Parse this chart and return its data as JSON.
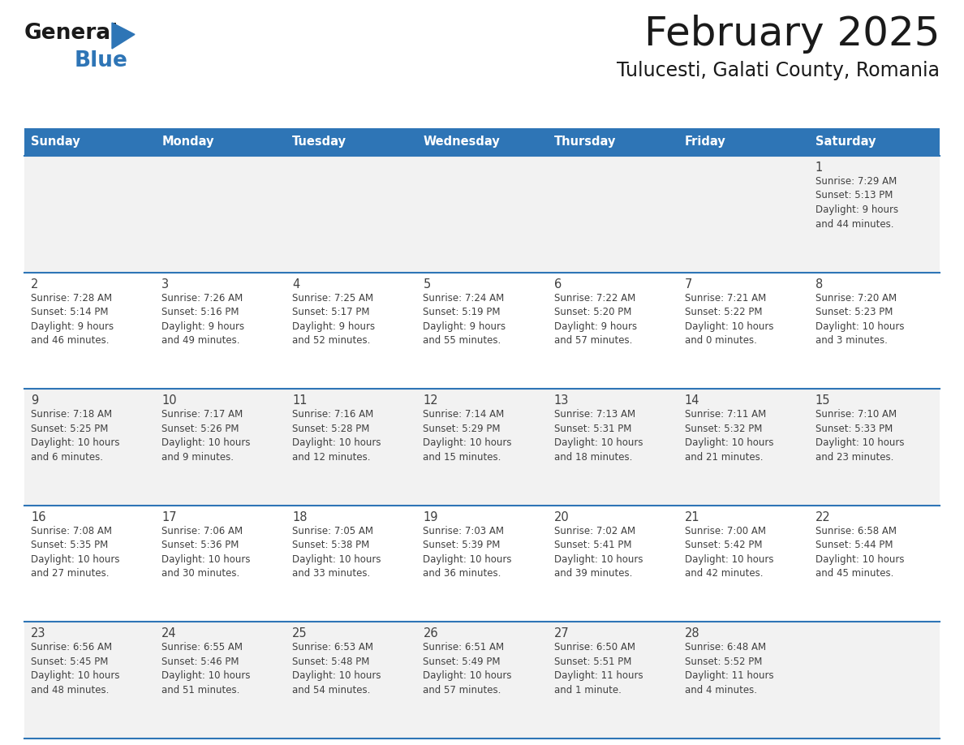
{
  "title": "February 2025",
  "subtitle": "Tulucesti, Galati County, Romania",
  "header_bg": "#2E75B6",
  "header_text_color": "#FFFFFF",
  "days_of_week": [
    "Sunday",
    "Monday",
    "Tuesday",
    "Wednesday",
    "Thursday",
    "Friday",
    "Saturday"
  ],
  "divider_color": "#2E75B6",
  "text_color": "#404040",
  "row_bg": [
    "#F2F2F2",
    "#FFFFFF",
    "#F2F2F2",
    "#FFFFFF",
    "#F2F2F2"
  ],
  "calendar": [
    [
      null,
      null,
      null,
      null,
      null,
      null,
      {
        "day": "1",
        "sunrise": "7:29 AM",
        "sunset": "5:13 PM",
        "daylight1": "Daylight: 9 hours",
        "daylight2": "and 44 minutes."
      }
    ],
    [
      {
        "day": "2",
        "sunrise": "7:28 AM",
        "sunset": "5:14 PM",
        "daylight1": "Daylight: 9 hours",
        "daylight2": "and 46 minutes."
      },
      {
        "day": "3",
        "sunrise": "7:26 AM",
        "sunset": "5:16 PM",
        "daylight1": "Daylight: 9 hours",
        "daylight2": "and 49 minutes."
      },
      {
        "day": "4",
        "sunrise": "7:25 AM",
        "sunset": "5:17 PM",
        "daylight1": "Daylight: 9 hours",
        "daylight2": "and 52 minutes."
      },
      {
        "day": "5",
        "sunrise": "7:24 AM",
        "sunset": "5:19 PM",
        "daylight1": "Daylight: 9 hours",
        "daylight2": "and 55 minutes."
      },
      {
        "day": "6",
        "sunrise": "7:22 AM",
        "sunset": "5:20 PM",
        "daylight1": "Daylight: 9 hours",
        "daylight2": "and 57 minutes."
      },
      {
        "day": "7",
        "sunrise": "7:21 AM",
        "sunset": "5:22 PM",
        "daylight1": "Daylight: 10 hours",
        "daylight2": "and 0 minutes."
      },
      {
        "day": "8",
        "sunrise": "7:20 AM",
        "sunset": "5:23 PM",
        "daylight1": "Daylight: 10 hours",
        "daylight2": "and 3 minutes."
      }
    ],
    [
      {
        "day": "9",
        "sunrise": "7:18 AM",
        "sunset": "5:25 PM",
        "daylight1": "Daylight: 10 hours",
        "daylight2": "and 6 minutes."
      },
      {
        "day": "10",
        "sunrise": "7:17 AM",
        "sunset": "5:26 PM",
        "daylight1": "Daylight: 10 hours",
        "daylight2": "and 9 minutes."
      },
      {
        "day": "11",
        "sunrise": "7:16 AM",
        "sunset": "5:28 PM",
        "daylight1": "Daylight: 10 hours",
        "daylight2": "and 12 minutes."
      },
      {
        "day": "12",
        "sunrise": "7:14 AM",
        "sunset": "5:29 PM",
        "daylight1": "Daylight: 10 hours",
        "daylight2": "and 15 minutes."
      },
      {
        "day": "13",
        "sunrise": "7:13 AM",
        "sunset": "5:31 PM",
        "daylight1": "Daylight: 10 hours",
        "daylight2": "and 18 minutes."
      },
      {
        "day": "14",
        "sunrise": "7:11 AM",
        "sunset": "5:32 PM",
        "daylight1": "Daylight: 10 hours",
        "daylight2": "and 21 minutes."
      },
      {
        "day": "15",
        "sunrise": "7:10 AM",
        "sunset": "5:33 PM",
        "daylight1": "Daylight: 10 hours",
        "daylight2": "and 23 minutes."
      }
    ],
    [
      {
        "day": "16",
        "sunrise": "7:08 AM",
        "sunset": "5:35 PM",
        "daylight1": "Daylight: 10 hours",
        "daylight2": "and 27 minutes."
      },
      {
        "day": "17",
        "sunrise": "7:06 AM",
        "sunset": "5:36 PM",
        "daylight1": "Daylight: 10 hours",
        "daylight2": "and 30 minutes."
      },
      {
        "day": "18",
        "sunrise": "7:05 AM",
        "sunset": "5:38 PM",
        "daylight1": "Daylight: 10 hours",
        "daylight2": "and 33 minutes."
      },
      {
        "day": "19",
        "sunrise": "7:03 AM",
        "sunset": "5:39 PM",
        "daylight1": "Daylight: 10 hours",
        "daylight2": "and 36 minutes."
      },
      {
        "day": "20",
        "sunrise": "7:02 AM",
        "sunset": "5:41 PM",
        "daylight1": "Daylight: 10 hours",
        "daylight2": "and 39 minutes."
      },
      {
        "day": "21",
        "sunrise": "7:00 AM",
        "sunset": "5:42 PM",
        "daylight1": "Daylight: 10 hours",
        "daylight2": "and 42 minutes."
      },
      {
        "day": "22",
        "sunrise": "6:58 AM",
        "sunset": "5:44 PM",
        "daylight1": "Daylight: 10 hours",
        "daylight2": "and 45 minutes."
      }
    ],
    [
      {
        "day": "23",
        "sunrise": "6:56 AM",
        "sunset": "5:45 PM",
        "daylight1": "Daylight: 10 hours",
        "daylight2": "and 48 minutes."
      },
      {
        "day": "24",
        "sunrise": "6:55 AM",
        "sunset": "5:46 PM",
        "daylight1": "Daylight: 10 hours",
        "daylight2": "and 51 minutes."
      },
      {
        "day": "25",
        "sunrise": "6:53 AM",
        "sunset": "5:48 PM",
        "daylight1": "Daylight: 10 hours",
        "daylight2": "and 54 minutes."
      },
      {
        "day": "26",
        "sunrise": "6:51 AM",
        "sunset": "5:49 PM",
        "daylight1": "Daylight: 10 hours",
        "daylight2": "and 57 minutes."
      },
      {
        "day": "27",
        "sunrise": "6:50 AM",
        "sunset": "5:51 PM",
        "daylight1": "Daylight: 11 hours",
        "daylight2": "and 1 minute."
      },
      {
        "day": "28",
        "sunrise": "6:48 AM",
        "sunset": "5:52 PM",
        "daylight1": "Daylight: 11 hours",
        "daylight2": "and 4 minutes."
      },
      null
    ]
  ],
  "logo_color_general": "#1a1a1a",
  "logo_color_blue": "#2E75B6",
  "logo_triangle_color": "#2E75B6"
}
